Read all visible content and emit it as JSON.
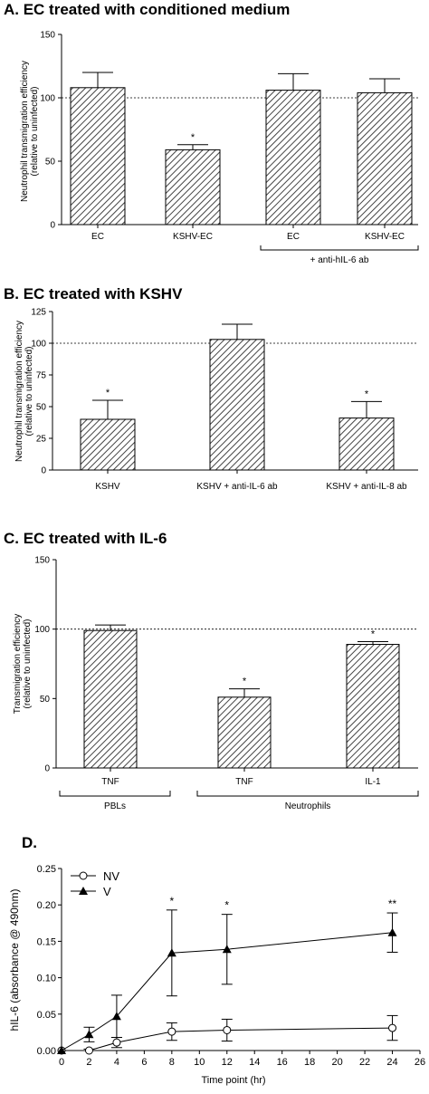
{
  "chart_data": [
    {
      "panel": "A.",
      "type": "bar",
      "title": "EC treated with conditioned medium",
      "ylabel_line1": "Neutrophil transmigration efficiency",
      "ylabel_line2": "(relative to uninfected)",
      "ylim": [
        0,
        150
      ],
      "yticks": [
        "0",
        "50",
        "100",
        "150"
      ],
      "reference_line": 100,
      "categories": [
        "EC",
        "KSHV-EC",
        "EC",
        "KSHV-EC"
      ],
      "values": [
        108,
        59,
        106,
        104
      ],
      "errors": [
        12,
        4,
        13,
        11
      ],
      "significance": [
        "",
        "*",
        "",
        ""
      ],
      "group_label": "+ anti-hIL-6 ab"
    },
    {
      "panel": "B.",
      "type": "bar",
      "title": "EC treated with KSHV",
      "ylabel_line1": "Neutrophil transmigration efficiency",
      "ylabel_line2": "(relative to uninfected)",
      "ylim": [
        0,
        125
      ],
      "yticks": [
        "0",
        "25",
        "50",
        "75",
        "100",
        "125"
      ],
      "reference_line": 100,
      "categories": [
        "KSHV",
        "KSHV + anti-IL-6 ab",
        "KSHV + anti-IL-8 ab"
      ],
      "values": [
        40,
        103,
        41
      ],
      "errors": [
        15,
        12,
        13
      ],
      "significance": [
        "*",
        "",
        "*"
      ]
    },
    {
      "panel": "C.",
      "type": "bar",
      "title": "EC treated with IL-6",
      "ylabel_line1": "Transmigration efficiency",
      "ylabel_line2": "(relative to uninfected)",
      "ylim": [
        0,
        150
      ],
      "yticks": [
        "0",
        "50",
        "100",
        "150"
      ],
      "reference_line": 100,
      "categories": [
        "TNF",
        "TNF",
        "IL-1"
      ],
      "values": [
        99,
        51,
        89
      ],
      "errors": [
        4,
        6,
        2
      ],
      "significance": [
        "",
        "*",
        "*"
      ],
      "group_labels": [
        "PBLs",
        "Neutrophils"
      ]
    },
    {
      "panel": "D.",
      "type": "line",
      "ylabel": "hIL-6 (absorbance @ 490nm)",
      "xlabel": "Time point (hr)",
      "xlim": [
        0,
        26
      ],
      "ylim": [
        0,
        0.25
      ],
      "xticks": [
        "0",
        "2",
        "4",
        "6",
        "8",
        "10",
        "12",
        "14",
        "16",
        "18",
        "20",
        "22",
        "24",
        "26"
      ],
      "yticks": [
        "0.00",
        "0.05",
        "0.10",
        "0.15",
        "0.20",
        "0.25"
      ],
      "x": [
        0,
        2,
        4,
        8,
        12,
        24
      ],
      "series": [
        {
          "name": "NV",
          "marker": "open-circle",
          "values": [
            0.0,
            0.0,
            0.011,
            0.026,
            0.028,
            0.031
          ],
          "errors": [
            0.0,
            0.002,
            0.007,
            0.012,
            0.015,
            0.017
          ]
        },
        {
          "name": "V",
          "marker": "filled-triangle",
          "values": [
            0.0,
            0.022,
            0.047,
            0.134,
            0.139,
            0.162
          ],
          "errors": [
            0.0,
            0.01,
            0.029,
            0.059,
            0.048,
            0.027
          ]
        }
      ],
      "significance": [
        {
          "x": 8,
          "text": "*"
        },
        {
          "x": 12,
          "text": "*"
        },
        {
          "x": 24,
          "text": "**"
        }
      ]
    }
  ]
}
